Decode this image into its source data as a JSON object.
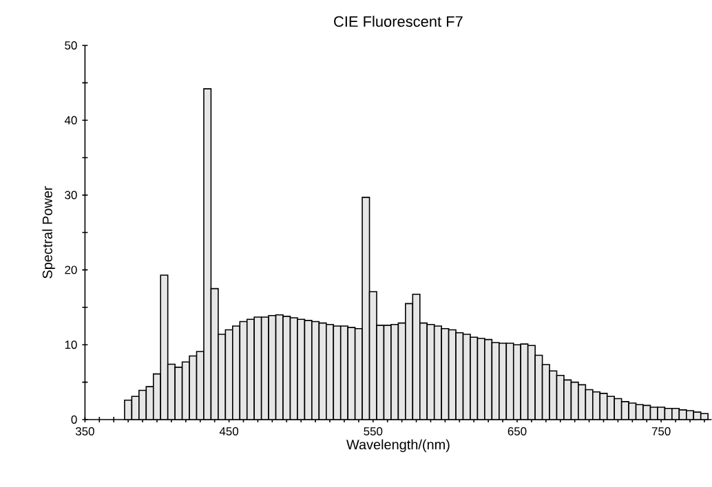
{
  "chart_data": {
    "type": "bar",
    "title": "CIE Fluorescent F7",
    "xlabel": "Wavelength/(nm)",
    "ylabel": "Spectral Power",
    "color": "#e6e6e6",
    "x": [
      380,
      385,
      390,
      395,
      400,
      405,
      410,
      415,
      420,
      425,
      430,
      435,
      440,
      445,
      450,
      455,
      460,
      465,
      470,
      475,
      480,
      485,
      490,
      495,
      500,
      505,
      510,
      515,
      520,
      525,
      530,
      535,
      540,
      545,
      550,
      555,
      560,
      565,
      570,
      575,
      580,
      585,
      590,
      595,
      600,
      605,
      610,
      615,
      620,
      625,
      630,
      635,
      640,
      645,
      650,
      655,
      660,
      665,
      670,
      675,
      680,
      685,
      690,
      695,
      700,
      705,
      710,
      715,
      720,
      725,
      730,
      735,
      740,
      745,
      750,
      755,
      760,
      765,
      770,
      775,
      780
    ],
    "values": [
      2.6,
      3.1,
      3.9,
      4.4,
      6.1,
      19.3,
      7.4,
      7.0,
      7.7,
      8.5,
      9.1,
      44.2,
      17.5,
      11.4,
      12.0,
      12.5,
      13.1,
      13.4,
      13.7,
      13.7,
      13.9,
      14.0,
      13.8,
      13.6,
      13.4,
      13.25,
      13.1,
      12.9,
      12.7,
      12.5,
      12.5,
      12.3,
      12.15,
      29.7,
      17.1,
      12.6,
      12.6,
      12.7,
      12.9,
      15.5,
      16.75,
      12.9,
      12.7,
      12.5,
      12.15,
      12.0,
      11.6,
      11.4,
      11.0,
      10.85,
      10.7,
      10.3,
      10.2,
      10.2,
      10.0,
      10.1,
      9.9,
      8.6,
      7.35,
      6.5,
      5.9,
      5.3,
      5.0,
      4.65,
      4.0,
      3.7,
      3.5,
      3.1,
      2.8,
      2.4,
      2.2,
      2.0,
      1.9,
      1.65,
      1.65,
      1.5,
      1.5,
      1.3,
      1.2,
      1.0,
      0.8
    ],
    "xlim": [
      350,
      785
    ],
    "xticks": [
      350,
      {
        "value": 360,
        "label": null
      },
      {
        "value": 370,
        "label": null
      },
      {
        "value": 380,
        "label": null
      },
      {
        "value": 390,
        "label": null
      },
      {
        "value": 400,
        "label": null
      },
      {
        "value": 410,
        "label": null
      },
      {
        "value": 420,
        "label": null
      },
      {
        "value": 430,
        "label": null
      },
      {
        "value": 440,
        "label": null
      },
      450,
      {
        "value": 460,
        "label": null
      },
      {
        "value": 470,
        "label": null
      },
      {
        "value": 480,
        "label": null
      },
      {
        "value": 490,
        "label": null
      },
      {
        "value": 500,
        "label": null
      },
      {
        "value": 510,
        "label": null
      },
      {
        "value": 520,
        "label": null
      },
      {
        "value": 530,
        "label": null
      },
      {
        "value": 540,
        "label": null
      },
      550,
      {
        "value": 560,
        "label": null
      },
      {
        "value": 570,
        "label": null
      },
      {
        "value": 580,
        "label": null
      },
      {
        "value": 590,
        "label": null
      },
      {
        "value": 600,
        "label": null
      },
      {
        "value": 610,
        "label": null
      },
      {
        "value": 620,
        "label": null
      },
      {
        "value": 630,
        "label": null
      },
      {
        "value": 640,
        "label": null
      },
      650,
      {
        "value": 660,
        "label": null
      },
      {
        "value": 670,
        "label": null
      },
      {
        "value": 680,
        "label": null
      },
      {
        "value": 690,
        "label": null
      },
      {
        "value": 700,
        "label": null
      },
      {
        "value": 710,
        "label": null
      },
      {
        "value": 720,
        "label": null
      },
      {
        "value": 730,
        "label": null
      },
      {
        "value": 740,
        "label": null
      },
      750,
      {
        "value": 760,
        "label": null
      },
      {
        "value": 770,
        "label": null
      },
      {
        "value": 780,
        "label": null
      }
    ],
    "ylim": [
      0,
      50
    ],
    "yticks": [
      0,
      {
        "value": 5,
        "label": null
      },
      10,
      {
        "value": 15,
        "label": null
      },
      20,
      {
        "value": 25,
        "label": null
      },
      30,
      {
        "value": 35,
        "label": null
      },
      40,
      {
        "value": 45,
        "label": null
      },
      50
    ]
  }
}
